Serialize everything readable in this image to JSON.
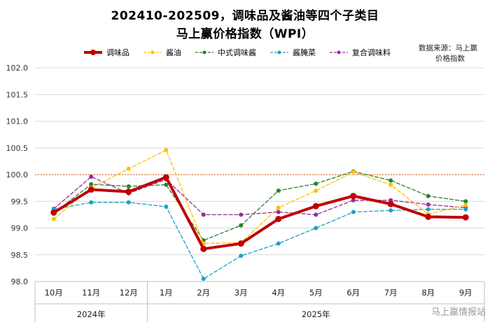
{
  "title_line1": "202410-202509，调味品及酱油等四个子类目",
  "title_line2": "马上赢价格指数（WPI）",
  "source_line1": "数据来源：马上赢",
  "source_line2": "价格指数",
  "watermark": "马上赢情报站",
  "chart_data": {
    "type": "line",
    "categories": [
      "10月",
      "11月",
      "12月",
      "1月",
      "2月",
      "3月",
      "4月",
      "5月",
      "6月",
      "7月",
      "8月",
      "9月"
    ],
    "year_groups": [
      {
        "label": "2024年",
        "start": 0,
        "end": 2
      },
      {
        "label": "2025年",
        "start": 3,
        "end": 11
      }
    ],
    "ylim": [
      98.0,
      102.0
    ],
    "yticks": [
      98.0,
      98.5,
      99.0,
      99.5,
      100.0,
      100.5,
      101.0,
      101.5,
      102.0
    ],
    "ytick_labels": [
      "98.0",
      "98.5",
      "99.0",
      "99.5",
      "100.0",
      "100.5",
      "101.0",
      "101.5",
      "102.0"
    ],
    "reference_line": 100.0,
    "legend_position": "top",
    "series": [
      {
        "name": "调味品",
        "color": "#c00000",
        "style": "solid",
        "width": 4,
        "marker_size": 4.5,
        "values": [
          99.29,
          99.72,
          99.68,
          99.95,
          98.61,
          98.71,
          99.17,
          99.41,
          99.6,
          99.45,
          99.21,
          99.2
        ]
      },
      {
        "name": "酱油",
        "color": "#ffc000",
        "style": "dashed",
        "width": 1.3,
        "marker_size": 3,
        "values": [
          99.17,
          99.75,
          100.11,
          100.46,
          98.71,
          98.73,
          99.38,
          99.7,
          100.05,
          99.81,
          99.26,
          99.43
        ]
      },
      {
        "name": "中式调味酱",
        "color": "#2e7d32",
        "style": "dashed",
        "width": 1.3,
        "marker_size": 3,
        "values": [
          99.28,
          99.82,
          99.78,
          99.81,
          98.77,
          99.05,
          99.7,
          99.83,
          100.06,
          99.89,
          99.6,
          99.5
        ]
      },
      {
        "name": "酱腌菜",
        "color": "#1ba1c6",
        "style": "dashed",
        "width": 1.3,
        "marker_size": 3,
        "values": [
          99.35,
          99.48,
          99.48,
          99.4,
          98.05,
          98.48,
          98.71,
          99.0,
          99.3,
          99.33,
          99.35,
          99.35
        ]
      },
      {
        "name": "复合调味料",
        "color": "#9c2a9c",
        "style": "dashed",
        "width": 1.3,
        "marker_size": 3,
        "values": [
          99.36,
          99.96,
          99.65,
          99.91,
          99.25,
          99.25,
          99.3,
          99.25,
          99.52,
          99.52,
          99.44,
          99.38
        ]
      }
    ]
  }
}
